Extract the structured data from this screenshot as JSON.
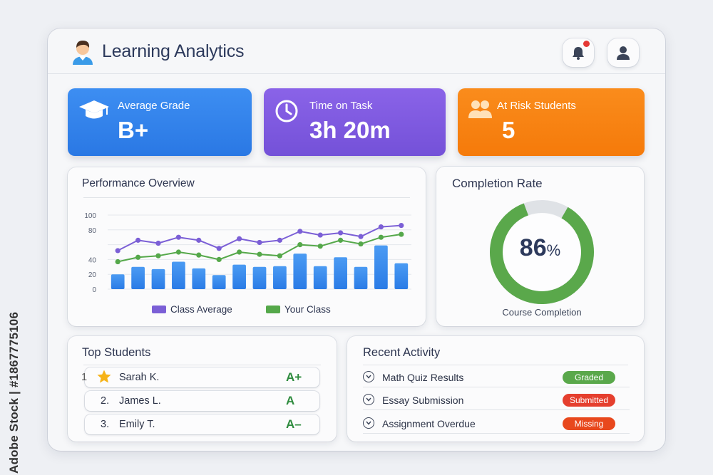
{
  "side_watermark": "Adobe Stock | #1867775106",
  "header": {
    "title": "Learning Analytics",
    "bell_icon": "bell-icon",
    "user_icon": "user-icon",
    "has_notification": true
  },
  "kpis": [
    {
      "label": "Average Grade",
      "value": "B+",
      "icon": "graduation-cap-icon",
      "color": "#2f7fe8"
    },
    {
      "label": "Time on Task",
      "value": "3h 20m",
      "icon": "clock-icon",
      "color": "#7d58df"
    },
    {
      "label": "At Risk Students",
      "value": "5",
      "icon": "users-icon",
      "color": "#f7830f"
    }
  ],
  "performance": {
    "title": "Performance Overview",
    "legend": [
      {
        "name": "Class Average",
        "color": "#7b5fd6"
      },
      {
        "name": "Your Class",
        "color": "#55a84a"
      }
    ]
  },
  "chart_data": {
    "type": "bar",
    "yticks": [
      0,
      20,
      40,
      60,
      80,
      100
    ],
    "ytick_labels": [
      "0",
      "20",
      "40",
      "",
      "80",
      "100"
    ],
    "ylim": [
      0,
      100
    ],
    "bars": [
      20,
      30,
      27,
      37,
      28,
      19,
      33,
      30,
      31,
      48,
      31,
      43,
      30,
      59,
      35
    ],
    "series": [
      {
        "name": "Class Average",
        "color": "#7b5fd6",
        "values": [
          52,
          66,
          62,
          70,
          66,
          55,
          68,
          63,
          66,
          78,
          73,
          76,
          71,
          84,
          86
        ]
      },
      {
        "name": "Your Class",
        "color": "#55a84a",
        "values": [
          37,
          43,
          45,
          50,
          46,
          40,
          50,
          47,
          45,
          60,
          58,
          66,
          61,
          70,
          74
        ]
      }
    ]
  },
  "completion": {
    "title": "Completion Rate",
    "value": "86",
    "unit": "%",
    "percent": 86,
    "subtitle": "Course Completion",
    "ring_color": "#5aa84b",
    "track_color": "#dfe2e6"
  },
  "top_students": {
    "title": "Top Students",
    "items": [
      {
        "rank": "1",
        "name": "Sarah K.",
        "grade": "A+",
        "star": true
      },
      {
        "rank": "2.",
        "name": "James L.",
        "grade": "A",
        "star": false
      },
      {
        "rank": "3.",
        "name": "Emily T.",
        "grade": "A–",
        "star": false
      }
    ]
  },
  "recent_activity": {
    "title": "Recent Activity",
    "items": [
      {
        "name": "Math Quiz Results",
        "status": "Graded",
        "color": "#5aa84b"
      },
      {
        "name": "Essay Submission",
        "status": "Submitted",
        "color": "#e53f2e"
      },
      {
        "name": "Assignment Overdue",
        "status": "Missing",
        "color": "#e8481d"
      }
    ]
  }
}
